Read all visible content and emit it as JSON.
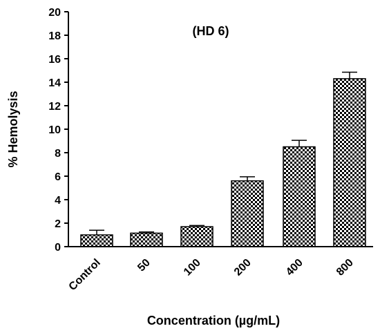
{
  "chart_data": {
    "type": "bar",
    "title": "(HD 6)",
    "xlabel": "Concentration (µg/mL)",
    "ylabel": "% Hemolysis",
    "categories": [
      "Control",
      "50",
      "100",
      "200",
      "400",
      "800"
    ],
    "values": [
      1.0,
      1.15,
      1.7,
      5.6,
      8.5,
      14.3
    ],
    "errors": [
      0.4,
      0.1,
      0.1,
      0.35,
      0.55,
      0.55
    ],
    "ylim": [
      0,
      20
    ],
    "yticks": [
      0,
      2,
      4,
      6,
      8,
      10,
      12,
      14,
      16,
      18,
      20
    ],
    "grid": false,
    "legend": "none",
    "bar_pattern": "black-white checkerboard"
  }
}
